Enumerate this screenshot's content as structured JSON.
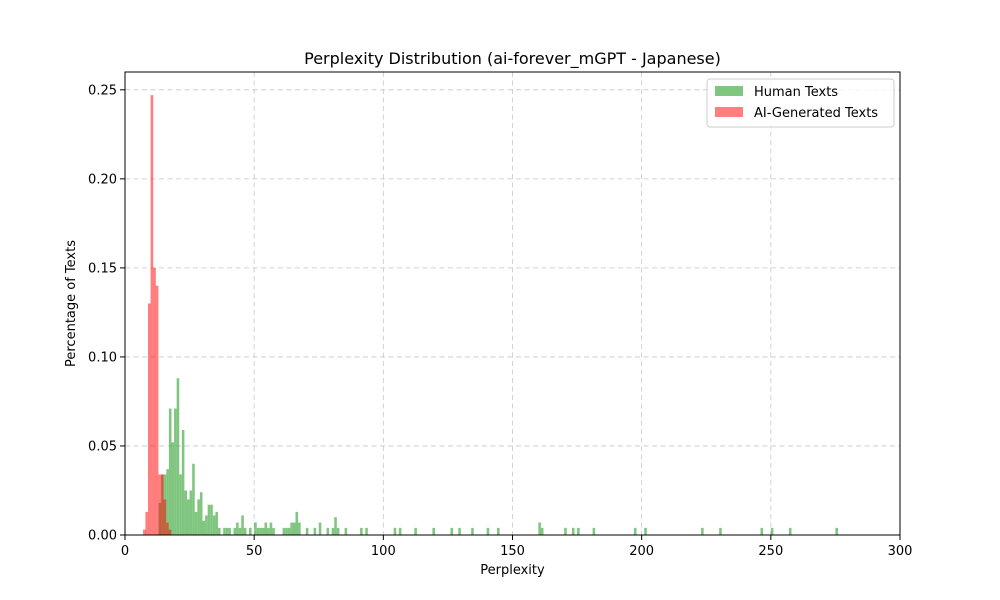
{
  "chart_data": {
    "type": "histogram",
    "title": "Perplexity Distribution (ai-forever_mGPT - Japanese)",
    "xlabel": "Perplexity",
    "ylabel": "Percentage of Texts",
    "xlim": [
      0,
      300
    ],
    "ylim": [
      0,
      0.26
    ],
    "xticks": [
      0,
      50,
      100,
      150,
      200,
      250,
      300
    ],
    "xtick_labels": [
      "0",
      "50",
      "100",
      "150",
      "200",
      "250",
      "300"
    ],
    "yticks": [
      0.0,
      0.05,
      0.1,
      0.15,
      0.2,
      0.25
    ],
    "ytick_labels": [
      "0.00",
      "0.05",
      "0.10",
      "0.15",
      "0.20",
      "0.25"
    ],
    "grid": true,
    "legend_position": "top-right",
    "series": [
      {
        "name": "Human Texts",
        "color": "#2ca02c",
        "opacity": 0.6,
        "bin_width": 1,
        "bins": [
          [
            13,
            0.018
          ],
          [
            14,
            0.034
          ],
          [
            15,
            0.034
          ],
          [
            16,
            0.037
          ],
          [
            17,
            0.071
          ],
          [
            18,
            0.052
          ],
          [
            19,
            0.071
          ],
          [
            20,
            0.088
          ],
          [
            21,
            0.034
          ],
          [
            22,
            0.059
          ],
          [
            23,
            0.025
          ],
          [
            24,
            0.02
          ],
          [
            25,
            0.025
          ],
          [
            26,
            0.04
          ],
          [
            27,
            0.013
          ],
          [
            28,
            0.02
          ],
          [
            29,
            0.024
          ],
          [
            30,
            0.008
          ],
          [
            31,
            0.011
          ],
          [
            32,
            0.017
          ],
          [
            33,
            0.017
          ],
          [
            34,
            0.011
          ],
          [
            35,
            0.013
          ],
          [
            36,
            0.004
          ],
          [
            38,
            0.004
          ],
          [
            39,
            0.004
          ],
          [
            40,
            0.004
          ],
          [
            42,
            0.004
          ],
          [
            43,
            0.007
          ],
          [
            44,
            0.004
          ],
          [
            45,
            0.011
          ],
          [
            46,
            0.004
          ],
          [
            48,
            0.004
          ],
          [
            50,
            0.007
          ],
          [
            51,
            0.004
          ],
          [
            52,
            0.004
          ],
          [
            53,
            0.004
          ],
          [
            54,
            0.007
          ],
          [
            55,
            0.004
          ],
          [
            56,
            0.007
          ],
          [
            57,
            0.004
          ],
          [
            61,
            0.004
          ],
          [
            62,
            0.004
          ],
          [
            63,
            0.004
          ],
          [
            64,
            0.007
          ],
          [
            65,
            0.007
          ],
          [
            66,
            0.013
          ],
          [
            67,
            0.007
          ],
          [
            70,
            0.004
          ],
          [
            73,
            0.004
          ],
          [
            75,
            0.007
          ],
          [
            78,
            0.004
          ],
          [
            80,
            0.004
          ],
          [
            81,
            0.01
          ],
          [
            82,
            0.004
          ],
          [
            85,
            0.004
          ],
          [
            91,
            0.004
          ],
          [
            93,
            0.004
          ],
          [
            104,
            0.004
          ],
          [
            106,
            0.004
          ],
          [
            112,
            0.004
          ],
          [
            119,
            0.004
          ],
          [
            126,
            0.004
          ],
          [
            129,
            0.004
          ],
          [
            134,
            0.004
          ],
          [
            140,
            0.004
          ],
          [
            144,
            0.004
          ],
          [
            160,
            0.007
          ],
          [
            161,
            0.004
          ],
          [
            170,
            0.004
          ],
          [
            173,
            0.004
          ],
          [
            175,
            0.004
          ],
          [
            181,
            0.004
          ],
          [
            197,
            0.004
          ],
          [
            201,
            0.004
          ],
          [
            223,
            0.004
          ],
          [
            230,
            0.004
          ],
          [
            246,
            0.004
          ],
          [
            250,
            0.004
          ],
          [
            257,
            0.004
          ],
          [
            275,
            0.004
          ]
        ]
      },
      {
        "name": "AI-Generated Texts",
        "color": "#ff0000",
        "opacity": 0.5,
        "bin_width": 1.04,
        "bins": [
          [
            7.0,
            0.003
          ],
          [
            7.9,
            0.013
          ],
          [
            8.9,
            0.13
          ],
          [
            9.9,
            0.247
          ],
          [
            10.9,
            0.15
          ],
          [
            11.9,
            0.14
          ],
          [
            12.9,
            0.034
          ],
          [
            13.9,
            0.034
          ],
          [
            14.9,
            0.02
          ],
          [
            15.9,
            0.007
          ],
          [
            16.9,
            0.003
          ]
        ]
      }
    ]
  }
}
